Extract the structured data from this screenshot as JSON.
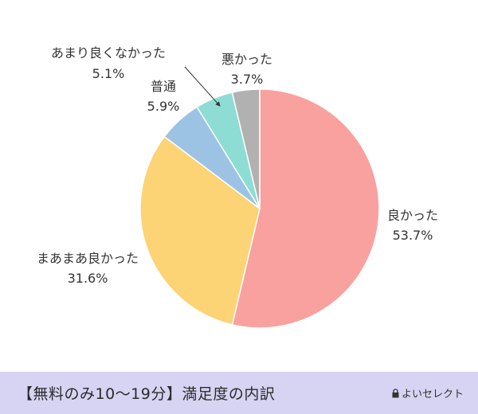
{
  "chart_data": {
    "type": "pie",
    "title": "",
    "slices": [
      {
        "label": "良かった",
        "percent_text": "53.7%",
        "value": 53.7,
        "color": "#f9a19e"
      },
      {
        "label": "まあまあ良かった",
        "percent_text": "31.6%",
        "value": 31.6,
        "color": "#fcd375"
      },
      {
        "label": "普通",
        "percent_text": "5.9%",
        "value": 5.9,
        "color": "#9dc3e4"
      },
      {
        "label": "あまり良くなかった",
        "percent_text": "5.1%",
        "value": 5.1,
        "color": "#8eddd4"
      },
      {
        "label": "悪かった",
        "percent_text": "3.7%",
        "value": 3.7,
        "color": "#b1b1b1"
      }
    ],
    "start": "12 o'clock",
    "direction": "clockwise"
  },
  "footer": {
    "caption": "【無料のみ10〜19分】満足度の内訳",
    "brand": "よいセレクト",
    "background": "#d6d4f2"
  }
}
